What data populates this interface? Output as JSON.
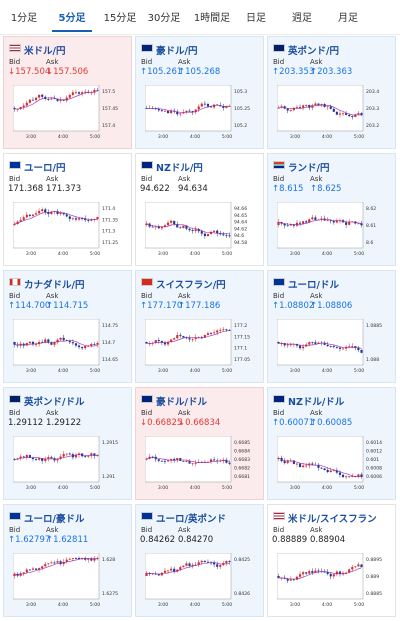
{
  "tabs": [
    "1分足",
    "5分足",
    "15分足",
    "30分足",
    "1時間足",
    "日足",
    "週足",
    "月足"
  ],
  "active_tab": 1,
  "cards": [
    {
      "pair": "米ドル/円",
      "flag": "us",
      "bid": "↓157.504",
      "ask": "↓157.506",
      "state": "neg",
      "bid_dir": "down",
      "ticks": [
        "157.5",
        "157.45",
        "157.4"
      ],
      "times": [
        "3:00",
        "4:00",
        "5:00"
      ],
      "trend": "up"
    },
    {
      "pair": "豪ドル/円",
      "flag": "au",
      "bid": "↑105.261",
      "ask": "↑105.268",
      "state": "pos",
      "bid_dir": "up",
      "ticks": [
        "105.3",
        "105.25",
        "105.2"
      ],
      "times": [
        "3:00",
        "4:00",
        "5:00"
      ],
      "trend": "vol"
    },
    {
      "pair": "英ポンド/円",
      "flag": "gb",
      "bid": "↑203.353",
      "ask": "↑203.363",
      "state": "pos",
      "bid_dir": "up",
      "ticks": [
        "203.4",
        "203.3",
        "203.2"
      ],
      "times": [
        "3:00",
        "4:00",
        "5:00"
      ],
      "trend": "vol"
    },
    {
      "pair": "ユーロ/円",
      "flag": "eu",
      "bid": "171.368",
      "ask": "171.373",
      "state": "neutral",
      "bid_dir": "none",
      "ticks": [
        "171.4",
        "171.35",
        "171.3",
        "171.25"
      ],
      "times": [
        "3:00",
        "4:00",
        "5:00"
      ],
      "trend": "flat"
    },
    {
      "pair": "NZドル/円",
      "flag": "nz",
      "bid": "94.622",
      "ask": "94.634",
      "state": "neutral",
      "bid_dir": "none",
      "ticks": [
        "94.66",
        "94.65",
        "94.64",
        "94.62",
        "94.6",
        "94.58"
      ],
      "times": [
        "3:00",
        "4:00",
        "5:00"
      ],
      "trend": "down"
    },
    {
      "pair": "ランド/円",
      "flag": "za",
      "bid": "↑8.615",
      "ask": "↑8.625",
      "state": "pos",
      "bid_dir": "up",
      "ticks": [
        "8.62",
        "8.61",
        "8.6"
      ],
      "times": [
        "3:00",
        "4:00",
        "5:00"
      ],
      "trend": "up"
    },
    {
      "pair": "カナダドル/円",
      "flag": "ca",
      "bid": "↑114.700",
      "ask": "↑114.715",
      "state": "pos",
      "bid_dir": "up",
      "ticks": [
        "114.75",
        "114.7",
        "114.65"
      ],
      "times": [
        "3:00",
        "4:00",
        "5:00"
      ],
      "trend": "vol"
    },
    {
      "pair": "スイスフラン/円",
      "flag": "ch",
      "bid": "↑177.170",
      "ask": "↑177.186",
      "state": "pos",
      "bid_dir": "up",
      "ticks": [
        "177.2",
        "177.15",
        "177.1",
        "177.05"
      ],
      "times": [
        "3:00",
        "4:00",
        "5:00"
      ],
      "trend": "up"
    },
    {
      "pair": "ユーロ/ドル",
      "flag": "eu",
      "bid": "↑1.08802",
      "ask": "↑1.08806",
      "state": "pos",
      "bid_dir": "up",
      "ticks": [
        "1.0885",
        "1.088"
      ],
      "times": [
        "3:00",
        "4:00",
        "5:00"
      ],
      "trend": "down"
    },
    {
      "pair": "英ポンド/ドル",
      "flag": "gb",
      "bid": "1.29112",
      "ask": "1.29122",
      "state": "pos",
      "bid_dir": "none",
      "ticks": [
        "1.2915",
        "1.291"
      ],
      "times": [
        "3:00",
        "4:00",
        "5:00"
      ],
      "trend": "down"
    },
    {
      "pair": "豪ドル/ドル",
      "flag": "au",
      "bid": "↓0.66825",
      "ask": "↓0.66834",
      "state": "neg",
      "bid_dir": "down",
      "ticks": [
        "0.6685",
        "0.6684",
        "0.6683",
        "0.6682",
        "0.6681"
      ],
      "times": [
        "3:00",
        "4:00",
        "5:00"
      ],
      "trend": "down"
    },
    {
      "pair": "NZドル/ドル",
      "flag": "nz",
      "bid": "↑0.60071",
      "ask": "↑0.60085",
      "state": "pos",
      "bid_dir": "up",
      "ticks": [
        "0.6014",
        "0.6012",
        "0.601",
        "0.6008",
        "0.6006"
      ],
      "times": [
        "3:00",
        "4:00",
        "5:00"
      ],
      "trend": "down"
    },
    {
      "pair": "ユーロ/豪ドル",
      "flag": "eu",
      "bid": "↑1.62797",
      "ask": "↑1.62811",
      "state": "pos",
      "bid_dir": "up",
      "ticks": [
        "1.628",
        "1.6275"
      ],
      "times": [
        "3:00",
        "4:00",
        "5:00"
      ],
      "trend": "vol"
    },
    {
      "pair": "ユーロ/英ポンド",
      "flag": "eu",
      "bid": "0.84262",
      "ask": "0.84270",
      "state": "pos",
      "bid_dir": "none",
      "ticks": [
        "0.8425",
        "0.8426"
      ],
      "times": [
        "3:00",
        "4:00",
        "5:00"
      ],
      "trend": "flat"
    },
    {
      "pair": "米ドル/スイスフラン",
      "flag": "us",
      "bid": "0.88889",
      "ask": "0.88904",
      "state": "neutral",
      "bid_dir": "none",
      "ticks": [
        "0.8895",
        "0.889",
        "0.8885"
      ],
      "times": [
        "3:00",
        "4:00",
        "5:00"
      ],
      "trend": "up"
    }
  ],
  "labels": {
    "bid": "Bid",
    "ask": "Ask"
  },
  "colors": {
    "up": "#1a73e8",
    "down": "#e53935",
    "blue": "#1a4d9e",
    "ma": "#9c27b0"
  }
}
